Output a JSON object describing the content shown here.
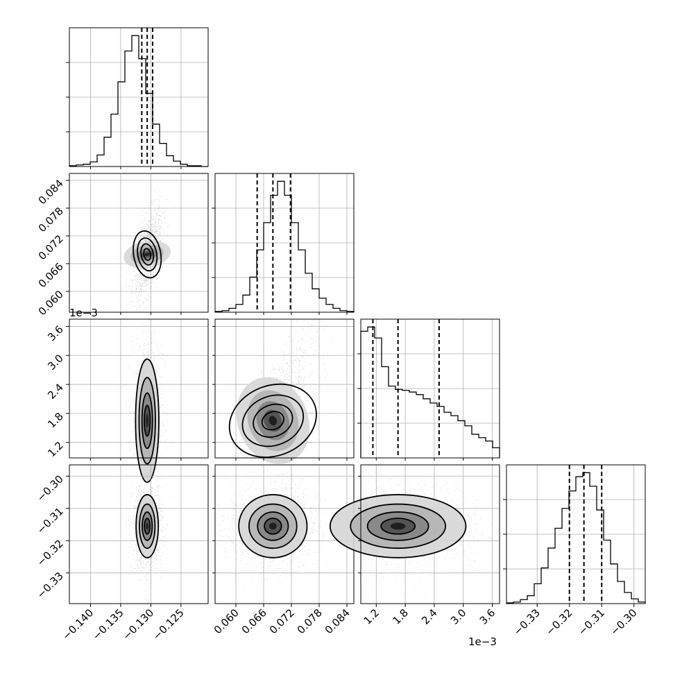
{
  "chart_data": {
    "type": "corner",
    "parameters": 4,
    "grid": true,
    "colors": {
      "contour": "#000000",
      "scatter": "#9a9a9a",
      "density_dark": "#1a1a1a",
      "grid": "#b0b0b0"
    },
    "params": [
      {
        "index": 0,
        "range": [
          -0.1435,
          -0.1205
        ],
        "ticks": [
          -0.14,
          -0.135,
          -0.13,
          -0.125
        ],
        "tick_labels": [
          "−0.140",
          "−0.135",
          "−0.130",
          "−0.125"
        ],
        "quantiles": [
          -0.1315,
          -0.1306,
          -0.1297
        ],
        "hist": [
          1,
          2,
          3,
          6,
          15,
          38,
          68,
          110,
          150,
          170,
          140,
          95,
          55,
          30,
          14,
          7,
          3,
          1,
          1,
          0
        ]
      },
      {
        "index": 1,
        "range": [
          0.0555,
          0.0855
        ],
        "ticks": [
          0.06,
          0.066,
          0.072,
          0.078,
          0.084
        ],
        "tick_labels": [
          "0.060",
          "0.066",
          "0.072",
          "0.078",
          "0.084"
        ],
        "quantiles": [
          0.0646,
          0.068,
          0.0718
        ],
        "hist": [
          1,
          2,
          5,
          10,
          22,
          45,
          80,
          115,
          150,
          168,
          150,
          115,
          80,
          50,
          30,
          18,
          10,
          5,
          2,
          1
        ]
      },
      {
        "index": 2,
        "range": [
          0.00088,
          0.00375
        ],
        "offset": "1e−3",
        "ticks": [
          0.0012,
          0.0018,
          0.0024,
          0.003,
          0.0036
        ],
        "tick_labels": [
          "1.2",
          "1.8",
          "2.4",
          "3.0",
          "3.6"
        ],
        "quantiles": [
          0.00113,
          0.00165,
          0.0025
        ],
        "hist": [
          150,
          155,
          142,
          108,
          85,
          81,
          80,
          78,
          75,
          70,
          65,
          61,
          54,
          50,
          44,
          38,
          28,
          24,
          20,
          12
        ]
      },
      {
        "index": 3,
        "range": [
          -0.3395,
          -0.2965
        ],
        "ticks": [
          -0.33,
          -0.32,
          -0.31,
          -0.3
        ],
        "tick_labels": [
          "−0.33",
          "−0.32",
          "−0.31",
          "−0.30"
        ],
        "quantiles": [
          -0.32,
          -0.3155,
          -0.31
        ],
        "hist": [
          1,
          2,
          5,
          10,
          25,
          45,
          70,
          95,
          120,
          142,
          160,
          165,
          148,
          118,
          80,
          50,
          28,
          14,
          6,
          2
        ]
      }
    ],
    "pair_panels": [
      {
        "x": 0,
        "y": 1,
        "rho": 0.55
      },
      {
        "x": 0,
        "y": 2,
        "rho": 0.15
      },
      {
        "x": 1,
        "y": 2,
        "rho": 0.8
      },
      {
        "x": 0,
        "y": 3,
        "rho": 0.05
      },
      {
        "x": 1,
        "y": 3,
        "rho": 0.05
      },
      {
        "x": 2,
        "y": 3,
        "rho": 0.05
      }
    ]
  }
}
